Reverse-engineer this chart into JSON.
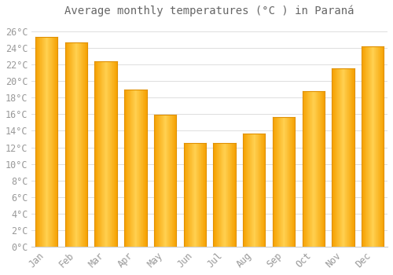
{
  "title": "Average monthly temperatures (°C ) in Paraná",
  "months": [
    "Jan",
    "Feb",
    "Mar",
    "Apr",
    "May",
    "Jun",
    "Jul",
    "Aug",
    "Sep",
    "Oct",
    "Nov",
    "Dec"
  ],
  "values": [
    25.3,
    24.7,
    22.4,
    19.0,
    15.9,
    12.5,
    12.5,
    13.7,
    15.7,
    18.8,
    21.5,
    24.2
  ],
  "bar_color_center": "#FFD050",
  "bar_color_edge": "#F5A000",
  "background_color": "#FFFFFF",
  "grid_color": "#DDDDDD",
  "text_color": "#999999",
  "ylim": [
    0,
    27
  ],
  "title_fontsize": 10,
  "tick_fontsize": 8.5
}
